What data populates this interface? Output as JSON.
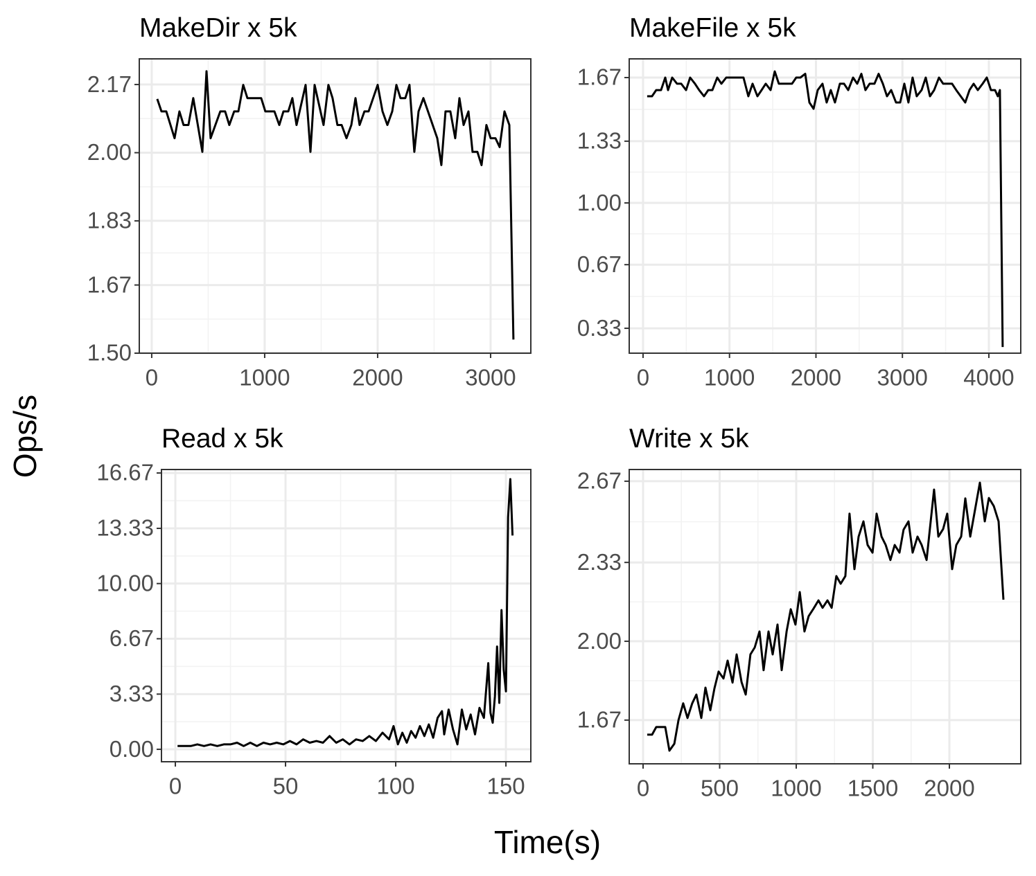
{
  "ylabel": "Ops/s",
  "xlabel": "Time(s)",
  "chart_data": [
    {
      "type": "line",
      "title": "MakeDir x 5k",
      "color": "#000000",
      "grid": true,
      "x": [
        49,
        86,
        129,
        202,
        245,
        282,
        325,
        368,
        448,
        485,
        521,
        607,
        650,
        687,
        730,
        767,
        810,
        847,
        969,
        1006,
        1086,
        1129,
        1166,
        1209,
        1245,
        1282,
        1362,
        1405,
        1442,
        1521,
        1564,
        1601,
        1644,
        1681,
        1724,
        1767,
        1804,
        1840,
        1883,
        1920,
        2000,
        2043,
        2086,
        2129,
        2166,
        2202,
        2245,
        2282,
        2325,
        2362,
        2405,
        2528,
        2564,
        2601,
        2644,
        2687,
        2724,
        2761,
        2804,
        2840,
        2883,
        2920,
        2963,
        3000,
        3043,
        3080,
        3123,
        3166,
        3202
      ],
      "values": [
        2.134,
        2.103,
        2.103,
        2.036,
        2.103,
        2.069,
        2.069,
        2.136,
        2.002,
        2.203,
        2.036,
        2.103,
        2.103,
        2.069,
        2.103,
        2.103,
        2.169,
        2.136,
        2.136,
        2.103,
        2.103,
        2.069,
        2.103,
        2.103,
        2.136,
        2.069,
        2.169,
        2.002,
        2.169,
        2.069,
        2.169,
        2.136,
        2.069,
        2.069,
        2.036,
        2.069,
        2.136,
        2.069,
        2.103,
        2.103,
        2.169,
        2.103,
        2.069,
        2.103,
        2.169,
        2.136,
        2.136,
        2.169,
        2.002,
        2.103,
        2.136,
        2.036,
        1.969,
        2.103,
        2.103,
        2.036,
        2.136,
        2.069,
        2.103,
        2.002,
        2.002,
        1.969,
        2.069,
        2.036,
        2.036,
        2.014,
        2.103,
        2.069,
        1.534
      ],
      "xlim": [
        -110,
        3356
      ],
      "xticks": [
        0,
        1000,
        2000,
        3000
      ],
      "ylim": [
        1.5,
        2.234
      ],
      "yticks": [
        {
          "value": 1.5,
          "label": "1.50"
        },
        1.67,
        1.83,
        {
          "value": 2,
          "label": "2.00"
        },
        2.17
      ]
    },
    {
      "type": "line",
      "title": "MakeFile x 5k",
      "color": "#000000",
      "grid": true,
      "x": [
        48,
        104,
        152,
        208,
        257,
        289,
        337,
        393,
        441,
        497,
        545,
        601,
        649,
        705,
        754,
        802,
        858,
        906,
        962,
        1162,
        1218,
        1267,
        1323,
        1371,
        1419,
        1475,
        1523,
        1571,
        1723,
        1772,
        1820,
        1876,
        1924,
        1972,
        2020,
        2076,
        2124,
        2172,
        2220,
        2277,
        2325,
        2373,
        2429,
        2477,
        2525,
        2573,
        2621,
        2677,
        2725,
        2774,
        2822,
        2870,
        2926,
        2974,
        3022,
        3070,
        3118,
        3166,
        3222,
        3270,
        3319,
        3367,
        3423,
        3471,
        3575,
        3623,
        3727,
        3776,
        3824,
        3872,
        3928,
        3976,
        4024,
        4072,
        4104,
        4128,
        4160
      ],
      "values": [
        1.57,
        1.57,
        1.603,
        1.603,
        1.67,
        1.603,
        1.67,
        1.637,
        1.637,
        1.603,
        1.67,
        1.637,
        1.603,
        1.57,
        1.603,
        1.603,
        1.67,
        1.637,
        1.67,
        1.67,
        1.57,
        1.637,
        1.57,
        1.603,
        1.637,
        1.603,
        1.703,
        1.637,
        1.637,
        1.67,
        1.67,
        1.69,
        1.537,
        1.503,
        1.603,
        1.637,
        1.537,
        1.603,
        1.537,
        1.637,
        1.637,
        1.603,
        1.67,
        1.637,
        1.69,
        1.603,
        1.637,
        1.637,
        1.69,
        1.637,
        1.57,
        1.603,
        1.537,
        1.537,
        1.637,
        1.537,
        1.67,
        1.57,
        1.603,
        1.67,
        1.57,
        1.603,
        1.67,
        1.637,
        1.637,
        1.603,
        1.537,
        1.603,
        1.637,
        1.603,
        1.637,
        1.67,
        1.603,
        1.603,
        1.57,
        1.603,
        0.23
      ],
      "xlim": [
        -160,
        4369
      ],
      "xticks": [
        0,
        1000,
        2000,
        3000,
        4000
      ],
      "ylim": [
        0.197,
        1.77
      ],
      "yticks": [
        0.33,
        0.67,
        {
          "value": 1,
          "label": "1.00"
        },
        1.33,
        1.67
      ]
    },
    {
      "type": "line",
      "title": "Read x 5k",
      "color": "#000000",
      "grid": true,
      "x": [
        1,
        4,
        7,
        10,
        13,
        16,
        19,
        22,
        25,
        28,
        31,
        34,
        37,
        40,
        43,
        46,
        49,
        52,
        55,
        58,
        61,
        64,
        67,
        70,
        73,
        76,
        79,
        82,
        85,
        88,
        91,
        94,
        97,
        99,
        101,
        103,
        105,
        107,
        109,
        111,
        113,
        115,
        117,
        119,
        121,
        122,
        124,
        126,
        128,
        130,
        132,
        134,
        136,
        138,
        140,
        142,
        143,
        144,
        145,
        146,
        147,
        148,
        149,
        150,
        151,
        152,
        153
      ],
      "values": [
        0.2,
        0.2,
        0.2,
        0.3,
        0.2,
        0.3,
        0.2,
        0.3,
        0.3,
        0.4,
        0.2,
        0.4,
        0.2,
        0.4,
        0.3,
        0.4,
        0.3,
        0.5,
        0.3,
        0.6,
        0.4,
        0.5,
        0.4,
        0.8,
        0.4,
        0.6,
        0.3,
        0.6,
        0.5,
        0.8,
        0.5,
        1.0,
        0.6,
        1.4,
        0.3,
        1.0,
        0.4,
        1.1,
        0.7,
        1.4,
        0.8,
        1.5,
        0.7,
        1.9,
        2.3,
        0.9,
        2.4,
        1.2,
        0.3,
        2.4,
        1.2,
        2.1,
        0.9,
        2.5,
        1.9,
        5.2,
        2.2,
        1.6,
        3.2,
        6.2,
        2.8,
        8.4,
        4.8,
        3.5,
        14.0,
        16.3,
        12.9
      ],
      "xlim": [
        -6.3,
        161.3
      ],
      "xticks": [
        0,
        50,
        100,
        150
      ],
      "ylim": [
        -0.75,
        16.88
      ],
      "yticks": [
        {
          "value": 0,
          "label": "0.00"
        },
        3.33,
        6.67,
        {
          "value": 10,
          "label": "10.00"
        },
        13.33,
        16.67
      ]
    },
    {
      "type": "line",
      "title": "Write x 5k",
      "color": "#000000",
      "grid": true,
      "x": [
        27,
        59,
        86,
        145,
        172,
        204,
        231,
        262,
        290,
        321,
        348,
        380,
        407,
        439,
        466,
        493,
        525,
        552,
        584,
        611,
        643,
        670,
        701,
        729,
        760,
        787,
        819,
        846,
        878,
        905,
        937,
        964,
        995,
        1023,
        1054,
        1081,
        1113,
        1145,
        1172,
        1204,
        1231,
        1262,
        1290,
        1321,
        1348,
        1380,
        1407,
        1439,
        1466,
        1498,
        1525,
        1557,
        1584,
        1615,
        1643,
        1674,
        1701,
        1733,
        1760,
        1792,
        1819,
        1851,
        1900,
        1928,
        1959,
        1986,
        2018,
        2045,
        2077,
        2104,
        2136,
        2163,
        2199,
        2231,
        2258,
        2290,
        2321,
        2353
      ],
      "values": [
        1.609,
        1.609,
        1.641,
        1.641,
        1.542,
        1.571,
        1.67,
        1.74,
        1.679,
        1.74,
        1.777,
        1.679,
        1.806,
        1.711,
        1.803,
        1.873,
        1.844,
        1.919,
        1.827,
        1.945,
        1.829,
        1.777,
        1.945,
        1.974,
        2.041,
        1.879,
        2.041,
        1.945,
        2.07,
        1.879,
        2.041,
        2.134,
        2.07,
        2.206,
        2.041,
        2.105,
        2.137,
        2.171,
        2.14,
        2.171,
        2.14,
        2.273,
        2.241,
        2.273,
        2.534,
        2.302,
        2.438,
        2.502,
        2.403,
        2.371,
        2.534,
        2.438,
        2.403,
        2.34,
        2.403,
        2.371,
        2.467,
        2.502,
        2.371,
        2.438,
        2.403,
        2.34,
        2.635,
        2.438,
        2.47,
        2.534,
        2.302,
        2.403,
        2.438,
        2.598,
        2.438,
        2.534,
        2.664,
        2.502,
        2.6,
        2.566,
        2.502,
        2.174
      ],
      "xlim": [
        -90.5,
        2466
      ],
      "xticks": [
        0,
        500,
        1000,
        1500,
        2000
      ],
      "ylim": [
        1.487,
        2.719
      ],
      "yticks": [
        1.67,
        {
          "value": 2,
          "label": "2.00"
        },
        2.33,
        2.67
      ]
    }
  ]
}
